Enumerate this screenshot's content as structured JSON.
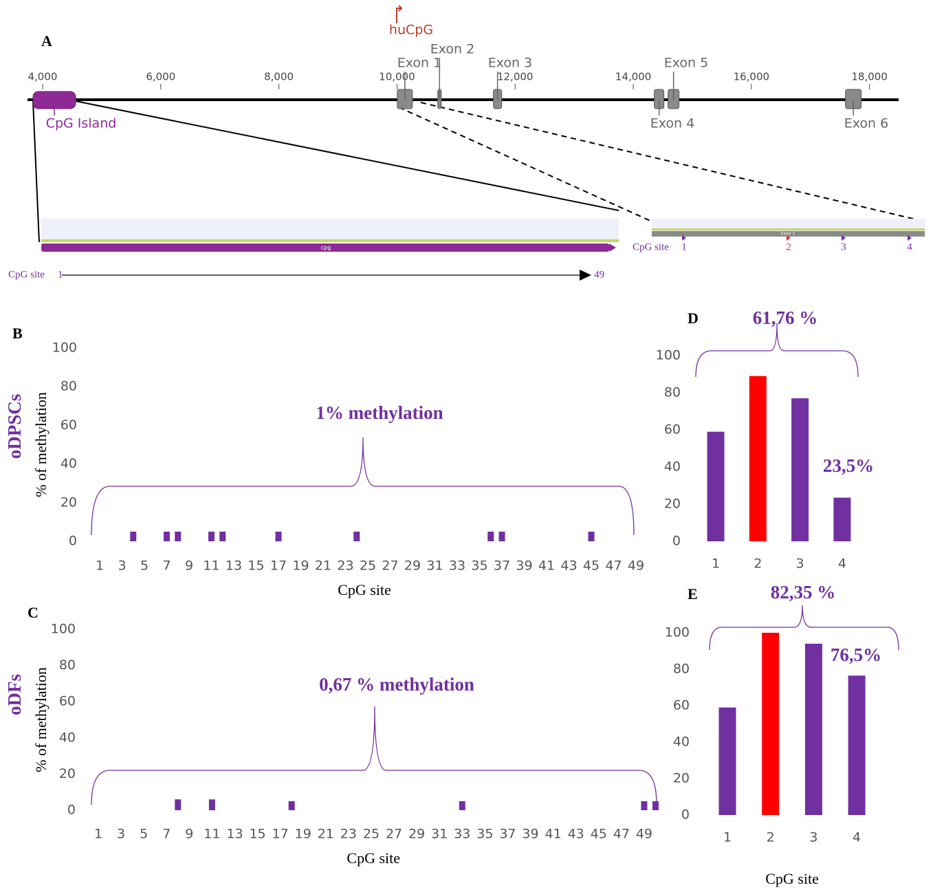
{
  "chart_data": [
    {
      "type": "genemap",
      "panel": "A",
      "xlim": [
        3744,
        18493
      ],
      "xticks": [
        {
          "value": 4000,
          "label": "4,000"
        },
        {
          "value": 6000,
          "label": "6,000"
        },
        {
          "value": 8000,
          "label": "8,000"
        },
        {
          "value": 10000,
          "label": "10,000"
        },
        {
          "value": 12000,
          "label": "12,000"
        },
        {
          "value": 14000,
          "label": "14,000"
        },
        {
          "value": 16000,
          "label": "16,000"
        },
        {
          "value": 18000,
          "label": "18,000"
        }
      ],
      "features": [
        {
          "name": "CpG Island",
          "start": 3837,
          "end": 4559,
          "color": "#8e2a96"
        },
        {
          "name": "huCpG",
          "start": 9995,
          "end": 9995,
          "color": "#c0392b"
        },
        {
          "name": "Exon 1",
          "start": 10005,
          "end": 10261,
          "color": "#8a8a8a"
        },
        {
          "name": "Exon 2",
          "start": 10690,
          "end": 10750,
          "color": "#8a8a8a"
        },
        {
          "name": "Exon 3",
          "start": 11632,
          "end": 11772,
          "color": "#8a8a8a"
        },
        {
          "name": "Exon 4",
          "start": 14356,
          "end": 14519,
          "color": "#8a8a8a"
        },
        {
          "name": "Exon 5",
          "start": 14589,
          "end": 14775,
          "color": "#8a8a8a"
        },
        {
          "name": "Exon 6",
          "start": 17593,
          "end": 17860,
          "color": "#8a8a8a"
        }
      ],
      "zoom_left": {
        "label": "CpG site",
        "first": 1,
        "last": 49,
        "feature": "cpg"
      },
      "zoom_right": {
        "label": "CpG site",
        "sites": [
          1,
          2,
          3,
          4
        ],
        "site_colors": [
          "#7030a0",
          "#e03030",
          "#7030a0",
          "#7030a0"
        ],
        "feature": "Exon 1"
      }
    },
    {
      "type": "bar",
      "panel": "B",
      "side_label": "oDPSCs",
      "annotations": [
        "1% methylation"
      ],
      "categories": [
        1,
        null,
        3,
        null,
        5,
        null,
        7,
        null,
        9,
        null,
        11,
        null,
        13,
        null,
        15,
        null,
        17,
        null,
        19,
        null,
        21,
        null,
        23,
        null,
        25,
        null,
        27,
        null,
        29,
        null,
        31,
        null,
        33,
        null,
        35,
        null,
        37,
        null,
        39,
        null,
        41,
        null,
        43,
        null,
        45,
        null,
        47,
        null,
        49
      ],
      "values": [
        0,
        0,
        0,
        5,
        0,
        0,
        5,
        5,
        0,
        0,
        5,
        5,
        0,
        0,
        0,
        0,
        5,
        0,
        0,
        0,
        0,
        0,
        0,
        5,
        0,
        0,
        0,
        0,
        0,
        0,
        0,
        0,
        0,
        0,
        0,
        5,
        5,
        0,
        0,
        0,
        0,
        0,
        0,
        0,
        5,
        0,
        0,
        0,
        0
      ],
      "color": "#7030a0",
      "ylim": [
        0,
        100
      ],
      "yticks": [
        0,
        20,
        40,
        60,
        80,
        100
      ],
      "y_label": "% of methylation",
      "x_label": "CpG site"
    },
    {
      "type": "bar",
      "panel": "C",
      "side_label": "oDFs",
      "annotations": [
        "0,67 % methylation"
      ],
      "categories": [
        1,
        null,
        3,
        null,
        5,
        null,
        7,
        null,
        9,
        null,
        11,
        null,
        13,
        null,
        15,
        null,
        17,
        null,
        19,
        null,
        21,
        null,
        23,
        null,
        25,
        null,
        27,
        null,
        29,
        null,
        31,
        null,
        33,
        null,
        35,
        null,
        37,
        null,
        39,
        null,
        41,
        null,
        43,
        null,
        45,
        null,
        47,
        null,
        49,
        null
      ],
      "values": [
        0,
        0,
        0,
        0,
        0,
        0,
        0,
        6,
        0,
        0,
        6,
        0,
        0,
        0,
        0,
        0,
        0,
        5,
        0,
        0,
        0,
        0,
        0,
        0,
        0,
        0,
        0,
        0,
        0,
        0,
        0,
        0,
        5,
        0,
        0,
        0,
        0,
        0,
        0,
        0,
        0,
        0,
        0,
        0,
        0,
        0,
        0,
        0,
        5,
        5
      ],
      "color": "#7030a0",
      "ylim": [
        0,
        100
      ],
      "yticks": [
        0,
        20,
        40,
        60,
        80,
        100
      ],
      "y_label": "% of methylation",
      "x_label": "CpG site"
    },
    {
      "type": "bar",
      "panel": "D",
      "annotations": [
        "61,76 %",
        "23,5%"
      ],
      "categories": [
        1,
        2,
        3,
        4
      ],
      "values": [
        59,
        89,
        77,
        23.5
      ],
      "colors": [
        "#7030a0",
        "#ff0000",
        "#7030a0",
        "#7030a0"
      ],
      "ylim": [
        0,
        100
      ],
      "yticks": [
        0,
        20,
        40,
        60,
        80,
        100
      ]
    },
    {
      "type": "bar",
      "panel": "E",
      "annotations": [
        "82,35 %",
        "76,5%"
      ],
      "categories": [
        1,
        2,
        3,
        4
      ],
      "values": [
        59,
        100,
        94,
        76.5
      ],
      "colors": [
        "#7030a0",
        "#ff0000",
        "#7030a0",
        "#7030a0"
      ],
      "ylim": [
        0,
        100
      ],
      "yticks": [
        0,
        20,
        40,
        60,
        80,
        100
      ],
      "x_label": "CpG site"
    }
  ]
}
